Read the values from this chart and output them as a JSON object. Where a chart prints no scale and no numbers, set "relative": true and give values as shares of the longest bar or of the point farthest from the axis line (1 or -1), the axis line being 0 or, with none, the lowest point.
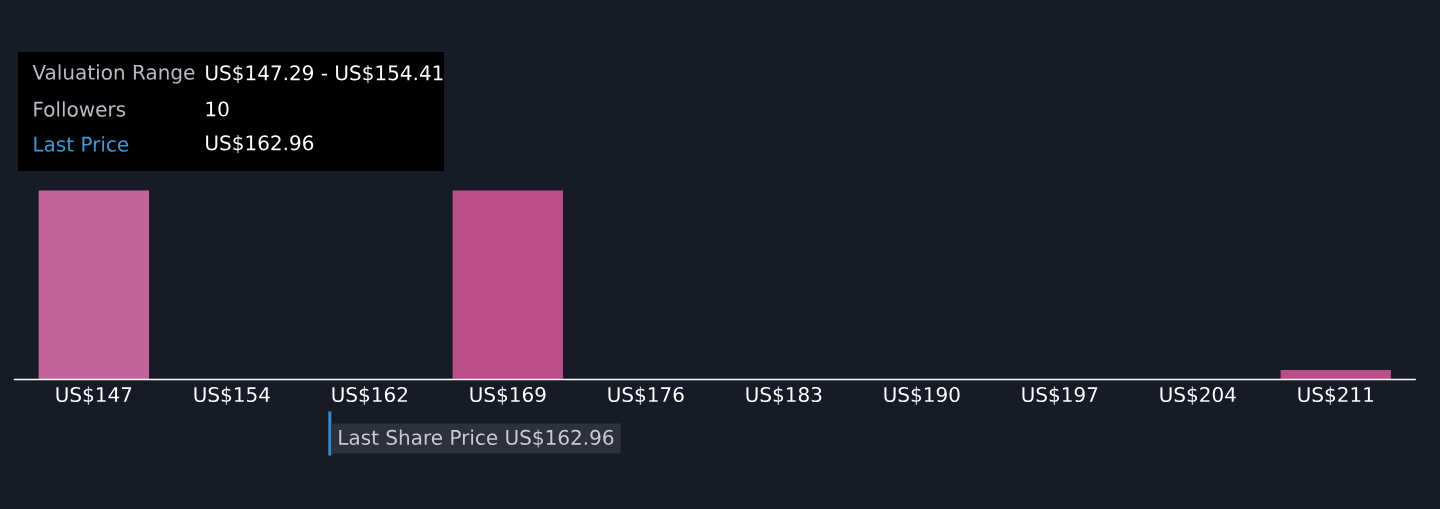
{
  "chart_data": {
    "type": "bar",
    "relative": true,
    "categories": [
      "US$147",
      "US$154",
      "US$162",
      "US$169",
      "US$176",
      "US$183",
      "US$190",
      "US$197",
      "US$204",
      "US$211"
    ],
    "values": [
      1,
      0,
      0,
      1,
      0,
      0,
      0,
      0,
      0,
      0.05
    ],
    "colors": [
      "#c4629a",
      "#bb4d8a",
      "#bb4d8a",
      "#bb4d8a",
      "#bb4d8a",
      "#bb4d8a",
      "#bb4d8a",
      "#bb4d8a",
      "#bb4d8a",
      "#bb4d8a"
    ],
    "annotations": [
      "Valuation Range",
      "US$147.29 - US$154.41",
      "Followers",
      "10",
      "Last Price",
      "US$162.96",
      "Last Share Price US$162.96"
    ]
  }
}
